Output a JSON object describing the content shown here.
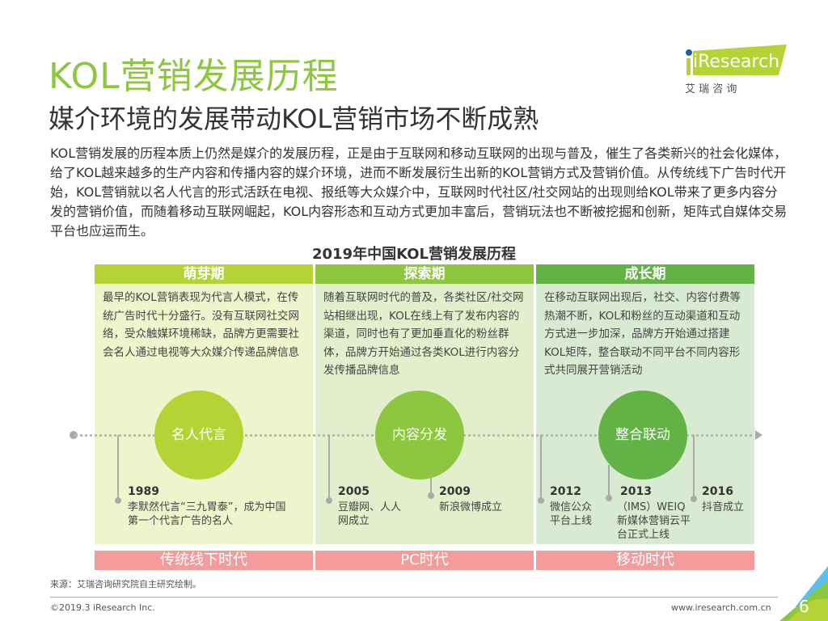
{
  "header": {
    "title": "KOL营销发展历程",
    "subtitle": "媒介环境的发展带动KOL营销市场不断成熟"
  },
  "logo": {
    "brand": "iResearch",
    "cn": "艾 瑞 咨 询",
    "accent": "#b5d334"
  },
  "intro": "KOL营销发展的历程本质上仍然是媒介的发展历程，正是由于互联网和移动互联网的出现与普及，催生了各类新兴的社会化媒体，给了KOL越来越多的生产内容和传播内容的媒介环境，进而不断发展衍生出新的KOL营销方式及营销价值。从传统线下广告时代开始，KOL营销就以名人代言的形式活跃在电视、报纸等大众媒介中，互联网时代社区/社交网站的出现则给KOL带来了更多内容分发的营销价值，而随着移动互联网崛起，KOL内容形态和互动方式更加丰富后，营销玩法也不断被挖掘和创新，矩阵式自媒体交易平台也应运而生。",
  "diagram": {
    "title": "2019年中国KOL营销发展历程",
    "stages": [
      {
        "name": "萌芽期",
        "color": "#b5d334",
        "bg": "#eef4cc",
        "desc": "最早的KOL营销表现为代言人模式，在传统广告时代十分盛行。没有互联网社交网络，受众触媒环境稀缺，品牌方更需要社会名人通过电视等大众媒介传递品牌信息",
        "circle": "名人代言",
        "era": "传统线下时代"
      },
      {
        "name": "探索期",
        "color": "#8dc63f",
        "bg": "#e3efcc",
        "desc": "随着互联网时代的普及，各类社区/社交网站相继出现，KOL在线上有了发布内容的渠道，同时也有了更加垂直化的粉丝群体，品牌方开始通过各类KOL进行内容分发传播品牌信息",
        "circle": "内容分发",
        "era": "PC时代"
      },
      {
        "name": "成长期",
        "color": "#62b246",
        "bg": "#d8ebd2",
        "desc": "在移动互联网出现后，社交、内容付费等热潮不断，KOL和粉丝的互动渠道和互动方式进一步加深，品牌方开始通过搭建KOL矩阵，整合联动不同平台不同内容形式共同展开营销活动",
        "circle": "整合联动",
        "era": "移动时代"
      }
    ],
    "events": [
      {
        "year": "1989",
        "text": "李默然代言“三九胃泰”，成为中国第一个代言广告的名人"
      },
      {
        "year": "2005",
        "text": "豆瓣网、人人网成立"
      },
      {
        "year": "2009",
        "text": "新浪微博成立"
      },
      {
        "year": "2012",
        "text": "微信公众平台上线"
      },
      {
        "year": "2013",
        "text": "（IMS）WEIQ新媒体营销云平台正式上线"
      },
      {
        "year": "2016",
        "text": "抖音成立"
      }
    ]
  },
  "footer": {
    "source": "来源：艾瑞咨询研究院自主研究绘制。",
    "copyright": "©2019.3 iResearch Inc.",
    "website": "www.iresearch.com.cn",
    "page": "6"
  }
}
